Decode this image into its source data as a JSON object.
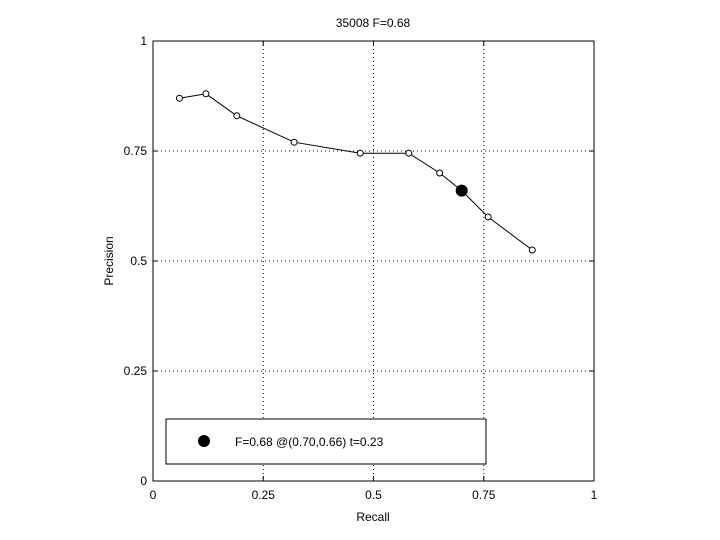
{
  "chart_data": {
    "type": "line",
    "title": "35008 F=0.68",
    "xlabel": "Recall",
    "ylabel": "Precision",
    "xlim": [
      0,
      1
    ],
    "ylim": [
      0,
      1
    ],
    "grid": true,
    "x_ticks": [
      "0",
      "0.25",
      "0.5",
      "0.75",
      "1"
    ],
    "y_ticks": [
      "0",
      "0.25",
      "0.5",
      "0.75",
      "1"
    ],
    "series": [
      {
        "points": [
          {
            "x": 0.06,
            "y": 0.87
          },
          {
            "x": 0.12,
            "y": 0.88
          },
          {
            "x": 0.19,
            "y": 0.83
          },
          {
            "x": 0.32,
            "y": 0.77
          },
          {
            "x": 0.47,
            "y": 0.745
          },
          {
            "x": 0.58,
            "y": 0.745
          },
          {
            "x": 0.65,
            "y": 0.7
          },
          {
            "x": 0.7,
            "y": 0.66
          },
          {
            "x": 0.76,
            "y": 0.6
          },
          {
            "x": 0.86,
            "y": 0.525
          }
        ]
      }
    ],
    "highlight": {
      "x": 0.7,
      "y": 0.66
    },
    "legend": {
      "position": "bottom",
      "label": "F=0.68 @(0.70,0.66) t=0.23"
    }
  }
}
